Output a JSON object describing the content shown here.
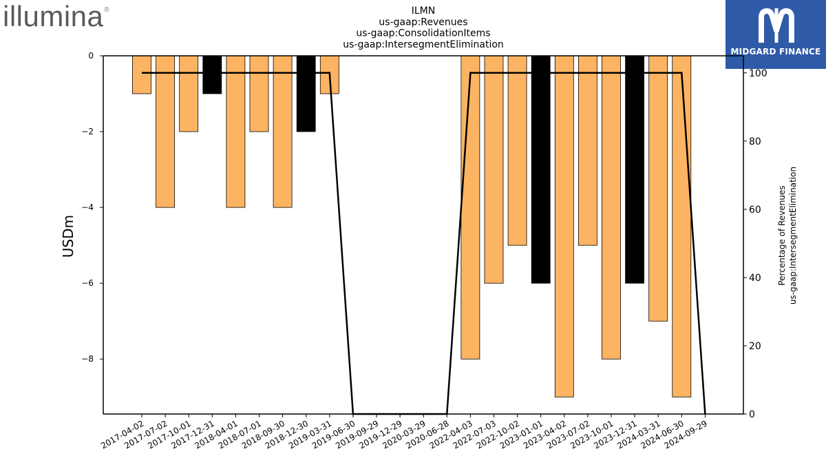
{
  "branding": {
    "left_logo_text": "illumina",
    "left_logo_reg": "®",
    "right_logo_text": "MIDGARD FINANCE",
    "right_logo_icon": "midgard-m-icon",
    "right_logo_bg": "#2f5aa8"
  },
  "chart_data": {
    "type": "bar",
    "title": [
      "ILMN",
      "us-gaap:Revenues",
      "us-gaap:ConsolidationItems",
      "us-gaap:IntersegmentElimination"
    ],
    "ylabel": "USDm",
    "y2label": [
      "Percentage of Revenues",
      "us-gaap:IntersegmentElimination"
    ],
    "categories": [
      "2017-04-02",
      "2017-07-02",
      "2017-10-01",
      "2017-12-31",
      "2018-04-01",
      "2018-07-01",
      "2018-09-30",
      "2018-12-30",
      "2019-03-31",
      "2019-06-30",
      "2019-09-29",
      "2019-12-29",
      "2020-03-29",
      "2020-06-28",
      "2022-04-03",
      "2022-07-03",
      "2022-10-02",
      "2023-01-01",
      "2023-04-02",
      "2023-07-02",
      "2023-10-01",
      "2023-12-31",
      "2024-03-31",
      "2024-06-30",
      "2024-09-29"
    ],
    "bars": [
      {
        "x": "2017-04-02",
        "value": -1,
        "color": "#fdb462"
      },
      {
        "x": "2017-07-02",
        "value": -4,
        "color": "#fdb462"
      },
      {
        "x": "2017-10-01",
        "value": -2,
        "color": "#fdb462"
      },
      {
        "x": "2017-12-31",
        "value": -1,
        "color": "#000000"
      },
      {
        "x": "2018-04-01",
        "value": -4,
        "color": "#fdb462"
      },
      {
        "x": "2018-07-01",
        "value": -2,
        "color": "#fdb462"
      },
      {
        "x": "2018-09-30",
        "value": -4,
        "color": "#fdb462"
      },
      {
        "x": "2018-12-30",
        "value": -2,
        "color": "#000000"
      },
      {
        "x": "2019-03-31",
        "value": -1,
        "color": "#fdb462"
      },
      {
        "x": "2022-04-03",
        "value": -8,
        "color": "#fdb462"
      },
      {
        "x": "2022-07-03",
        "value": -6,
        "color": "#fdb462"
      },
      {
        "x": "2022-10-02",
        "value": -5,
        "color": "#fdb462"
      },
      {
        "x": "2023-01-01",
        "value": -6,
        "color": "#000000"
      },
      {
        "x": "2023-04-02",
        "value": -9,
        "color": "#fdb462"
      },
      {
        "x": "2023-07-02",
        "value": -5,
        "color": "#fdb462"
      },
      {
        "x": "2023-10-01",
        "value": -8,
        "color": "#fdb462"
      },
      {
        "x": "2023-12-31",
        "value": -6,
        "color": "#000000"
      },
      {
        "x": "2024-03-31",
        "value": -7,
        "color": "#fdb462"
      },
      {
        "x": "2024-06-30",
        "value": -9,
        "color": "#fdb462"
      }
    ],
    "line": {
      "axis": "right",
      "color": "#000000",
      "x": [
        "2017-04-02",
        "2017-07-02",
        "2017-10-01",
        "2017-12-31",
        "2018-04-01",
        "2018-07-01",
        "2018-09-30",
        "2018-12-30",
        "2019-03-31",
        "2019-06-30",
        "2019-09-29",
        "2019-12-29",
        "2020-03-29",
        "2020-06-28",
        "2022-04-03",
        "2022-07-03",
        "2022-10-02",
        "2023-01-01",
        "2023-04-02",
        "2023-07-02",
        "2023-10-01",
        "2023-12-31",
        "2024-03-31",
        "2024-06-30",
        "2024-09-29"
      ],
      "values": [
        100,
        100,
        100,
        100,
        100,
        100,
        100,
        100,
        100,
        0,
        0,
        0,
        0,
        0,
        100,
        100,
        100,
        100,
        100,
        100,
        100,
        100,
        100,
        100,
        0
      ]
    },
    "ylim": [
      -9.45,
      0
    ],
    "yticks": [
      0,
      -2,
      -4,
      -6,
      -8
    ],
    "y2lim": [
      0,
      105
    ],
    "y2ticks": [
      0,
      20,
      40,
      60,
      80,
      100
    ],
    "grid": false,
    "legend": "none"
  }
}
